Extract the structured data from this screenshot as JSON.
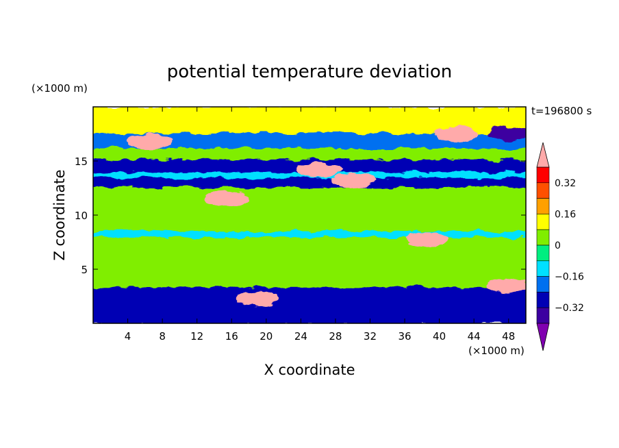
{
  "chart_data": {
    "type": "heatmap",
    "title": "potential temperature deviation",
    "xlabel": "X coordinate",
    "ylabel": "Z coordinate",
    "x_unit": "(×1000 m)",
    "y_unit": "(×1000 m)",
    "time_label": "t=196800 s",
    "xlim": [
      0,
      50
    ],
    "ylim": [
      0,
      20
    ],
    "x_ticks": [
      4,
      8,
      12,
      16,
      20,
      24,
      28,
      32,
      36,
      40,
      44,
      48
    ],
    "y_ticks": [
      5,
      10,
      15
    ],
    "colorbar": {
      "levels": [
        -0.4,
        -0.32,
        -0.24,
        -0.16,
        -0.08,
        0,
        0.08,
        0.16,
        0.24,
        0.32,
        0.4
      ],
      "labeled_levels": [
        0.32,
        0.16,
        0,
        -0.16,
        -0.32
      ],
      "colors": [
        "#8000b0",
        "#3c00a0",
        "#0000b4",
        "#0070f0",
        "#00e0ff",
        "#00ee80",
        "#80ee00",
        "#ffff00",
        "#ffa000",
        "#ff5000",
        "#ff0000",
        "#ffaaaa"
      ],
      "extend": "both"
    },
    "bands": [
      {
        "z0": 0,
        "z1": 3.4,
        "level": -0.32,
        "note": "strongly turbulent lower layer"
      },
      {
        "z0": 3.4,
        "z1": 8.0,
        "level": 0.04
      },
      {
        "z0": 8.0,
        "z1": 8.6,
        "level": -0.12
      },
      {
        "z0": 8.6,
        "z1": 9.3,
        "level": 0.04
      },
      {
        "z0": 9.3,
        "z1": 12.6,
        "level": 0.04
      },
      {
        "z0": 12.6,
        "z1": 13.5,
        "level": -0.28
      },
      {
        "z0": 13.5,
        "z1": 14.0,
        "level": -0.12
      },
      {
        "z0": 14.0,
        "z1": 15.2,
        "level": -0.3
      },
      {
        "z0": 15.2,
        "z1": 16.2,
        "level": 0.04
      },
      {
        "z0": 16.2,
        "z1": 17.6,
        "level": -0.2
      },
      {
        "z0": 17.6,
        "z1": 20.0,
        "level": 0.08
      }
    ],
    "anomalies": [
      {
        "x": 6.5,
        "z": 16.8,
        "level": 0.4,
        "desc": "large warm patch upper left"
      },
      {
        "x": 42,
        "z": 17.5,
        "level": 0.4,
        "desc": "warm patch upper right"
      },
      {
        "x": 26,
        "z": 14.2,
        "level": 0.4
      },
      {
        "x": 30,
        "z": 13.2,
        "level": 0.4
      },
      {
        "x": 15.5,
        "z": 11.5,
        "level": 0.4
      },
      {
        "x": 38.5,
        "z": 7.8,
        "level": 0.4
      },
      {
        "x": 48,
        "z": 3.5,
        "level": 0.4
      },
      {
        "x": 19,
        "z": 2.3,
        "level": 0.4
      },
      {
        "x": 48,
        "z": 17.5,
        "level": -0.4,
        "desc": "cold core upper right"
      }
    ]
  }
}
